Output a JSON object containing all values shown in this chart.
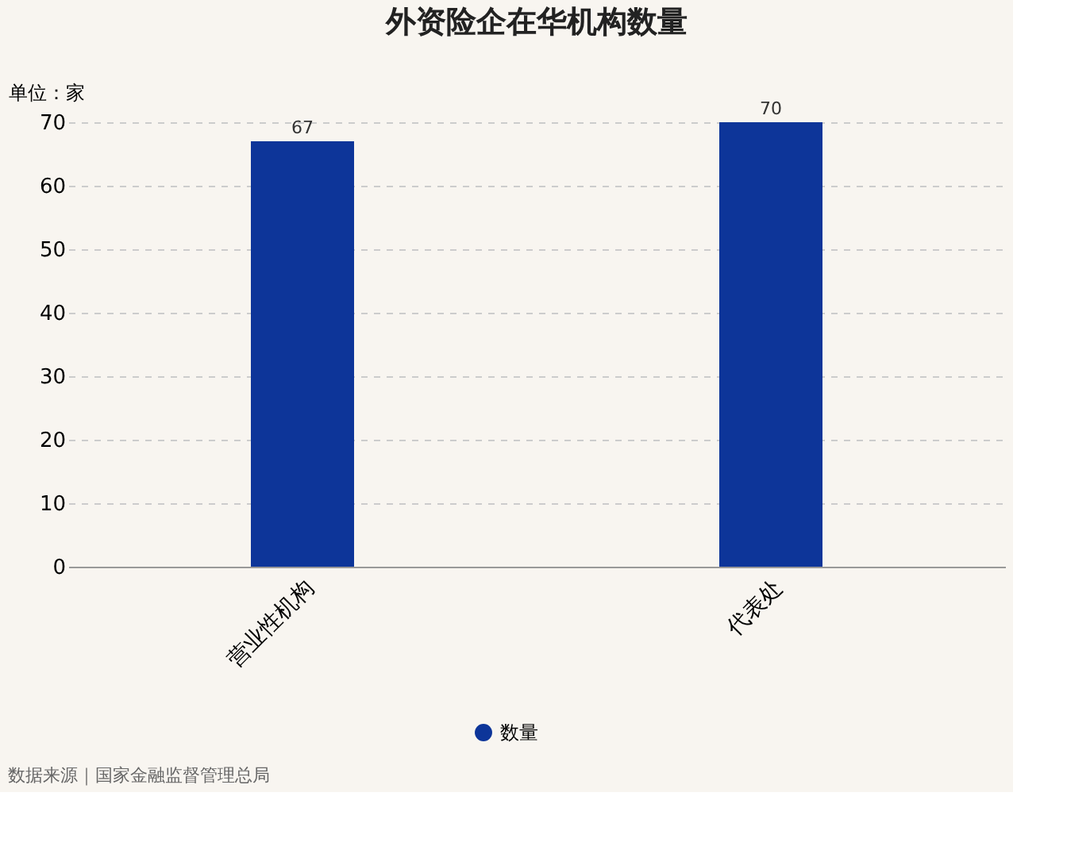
{
  "chart_data": {
    "type": "bar",
    "title": "外资险企在华机构数量",
    "ylabel": "单位：家",
    "categories": [
      "营业性机构",
      "代表处"
    ],
    "series": [
      {
        "name": "数量",
        "color": "#0d3599",
        "values": [
          67,
          70
        ]
      }
    ],
    "ylim": [
      0,
      70
    ],
    "yticks": [
      0,
      10,
      20,
      30,
      40,
      50,
      60,
      70
    ],
    "grid": "y",
    "legend": "bottom",
    "data_labels": true,
    "annotations": [
      "数据来源｜国家金融监督管理总局"
    ]
  }
}
